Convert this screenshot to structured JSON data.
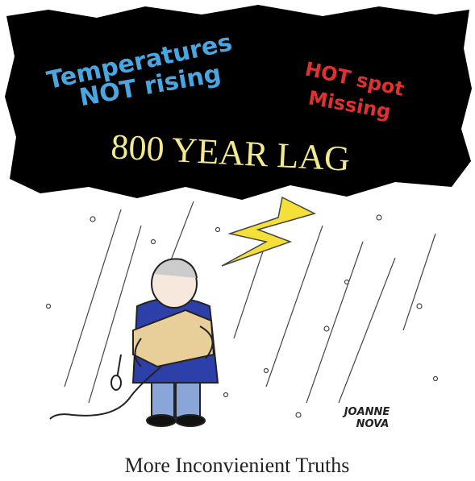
{
  "cloud": {
    "left_text": [
      "Temperatures",
      "NOT rising"
    ],
    "right_text": [
      "HOT spot",
      "Missing"
    ],
    "center_text": "800 YEAR LAG"
  },
  "signature": [
    "JOANNE",
    "NOVA"
  ],
  "caption": "More Inconvienient Truths"
}
